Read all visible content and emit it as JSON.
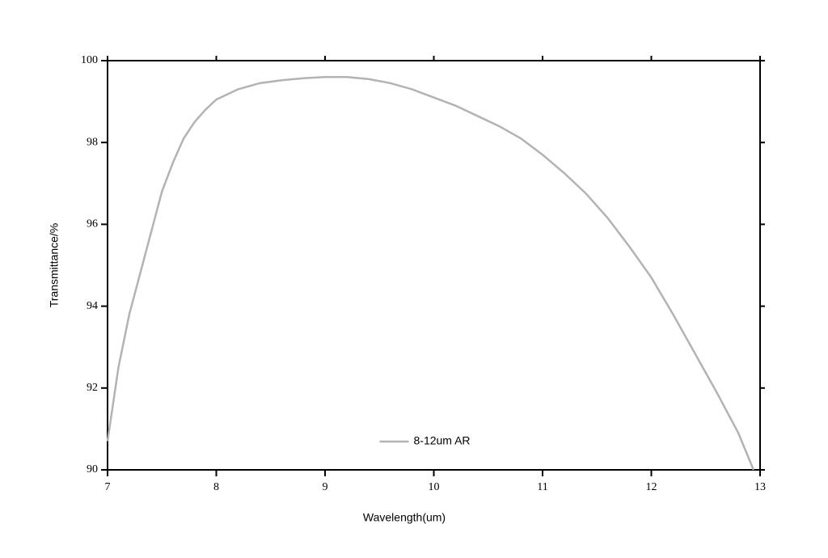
{
  "chart_data": {
    "type": "line",
    "xlabel": "Wavelength(um)",
    "ylabel": "Transmittance/%",
    "x": [
      7.0,
      7.1,
      7.2,
      7.3,
      7.4,
      7.5,
      7.6,
      7.7,
      7.8,
      7.9,
      8.0,
      8.2,
      8.4,
      8.6,
      8.8,
      9.0,
      9.2,
      9.4,
      9.6,
      9.8,
      10.0,
      10.2,
      10.4,
      10.6,
      10.8,
      11.0,
      11.2,
      11.4,
      11.6,
      11.8,
      12.0,
      12.2,
      12.4,
      12.6,
      12.8,
      12.94
    ],
    "series": [
      {
        "name": "8-12um AR",
        "color": "#b3b3b3",
        "values": [
          90.7,
          92.5,
          93.8,
          94.8,
          95.8,
          96.8,
          97.5,
          98.1,
          98.5,
          98.8,
          99.05,
          99.3,
          99.45,
          99.52,
          99.57,
          99.6,
          99.6,
          99.55,
          99.45,
          99.3,
          99.1,
          98.9,
          98.65,
          98.4,
          98.1,
          97.7,
          97.25,
          96.75,
          96.15,
          95.45,
          94.7,
          93.8,
          92.85,
          91.9,
          90.9,
          90.0
        ]
      }
    ],
    "xlim": [
      7,
      13
    ],
    "xticks": [
      7,
      8,
      9,
      10,
      11,
      12,
      13
    ],
    "ylim": [
      90,
      100
    ],
    "yticks": [
      90,
      92,
      94,
      96,
      98,
      100
    ],
    "legend": "lower center",
    "grid": false
  }
}
